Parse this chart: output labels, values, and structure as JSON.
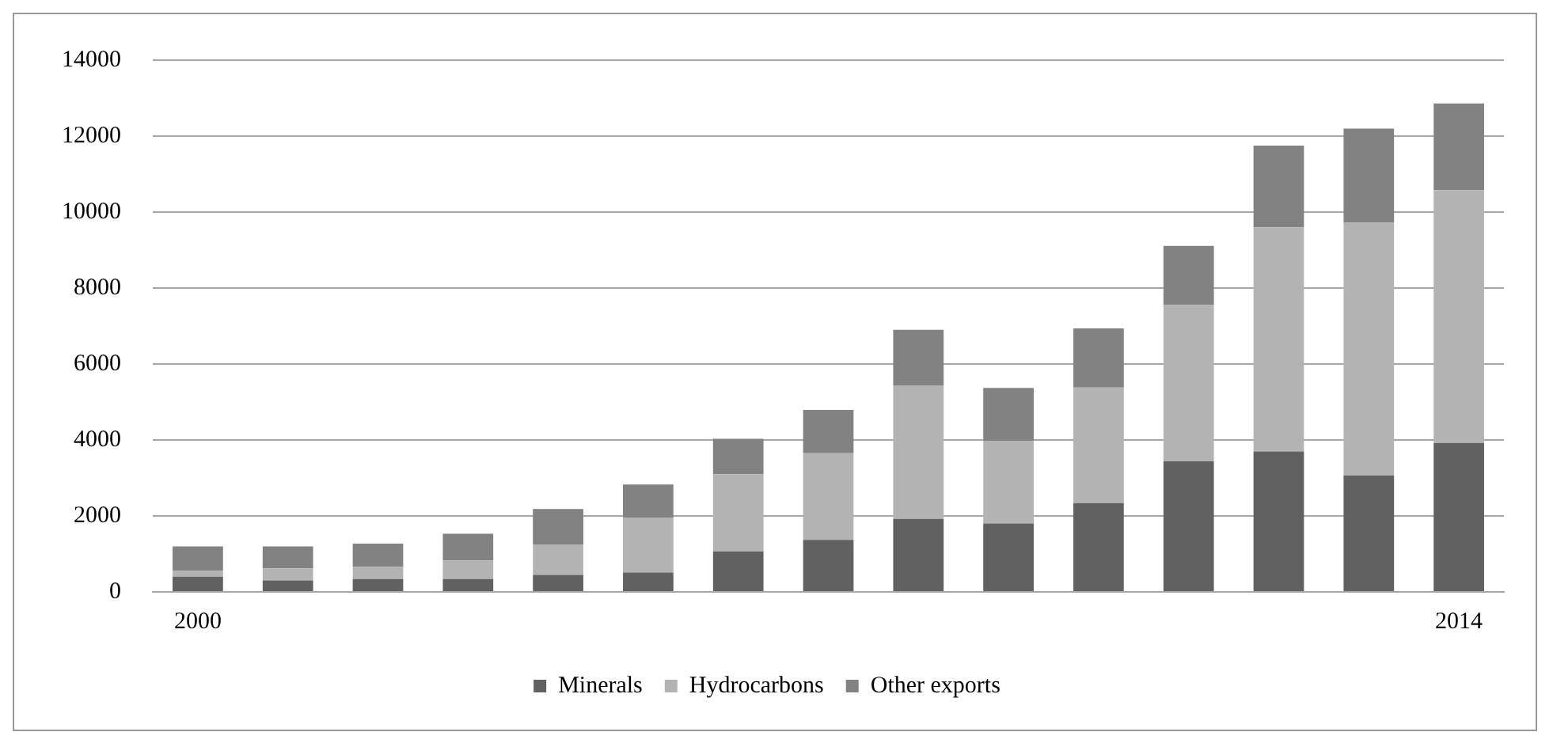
{
  "chart_data": {
    "type": "bar",
    "stacked": true,
    "categories": [
      "2000",
      null,
      null,
      null,
      null,
      null,
      null,
      null,
      null,
      null,
      null,
      null,
      null,
      null,
      "2014"
    ],
    "series": [
      {
        "name": "Minerals",
        "color": "#616161",
        "values": [
          400,
          300,
          340,
          340,
          450,
          510,
          1060,
          1370,
          1920,
          1800,
          2340,
          3440,
          3700,
          3060,
          3920
        ]
      },
      {
        "name": "Hydrocarbons",
        "color": "#b3b3b3",
        "values": [
          150,
          320,
          320,
          490,
          800,
          1450,
          2040,
          2280,
          3520,
          2180,
          3040,
          4110,
          5900,
          6660,
          6660
        ]
      },
      {
        "name": "Other exports",
        "color": "#828282",
        "values": [
          650,
          580,
          610,
          700,
          930,
          870,
          930,
          1140,
          1460,
          1390,
          1560,
          1560,
          2150,
          2480,
          2280
        ]
      }
    ],
    "ylim": [
      0,
      14000
    ],
    "yticks": [
      0,
      2000,
      4000,
      6000,
      8000,
      10000,
      12000,
      14000
    ],
    "grid": "y",
    "legend": "bottom"
  }
}
